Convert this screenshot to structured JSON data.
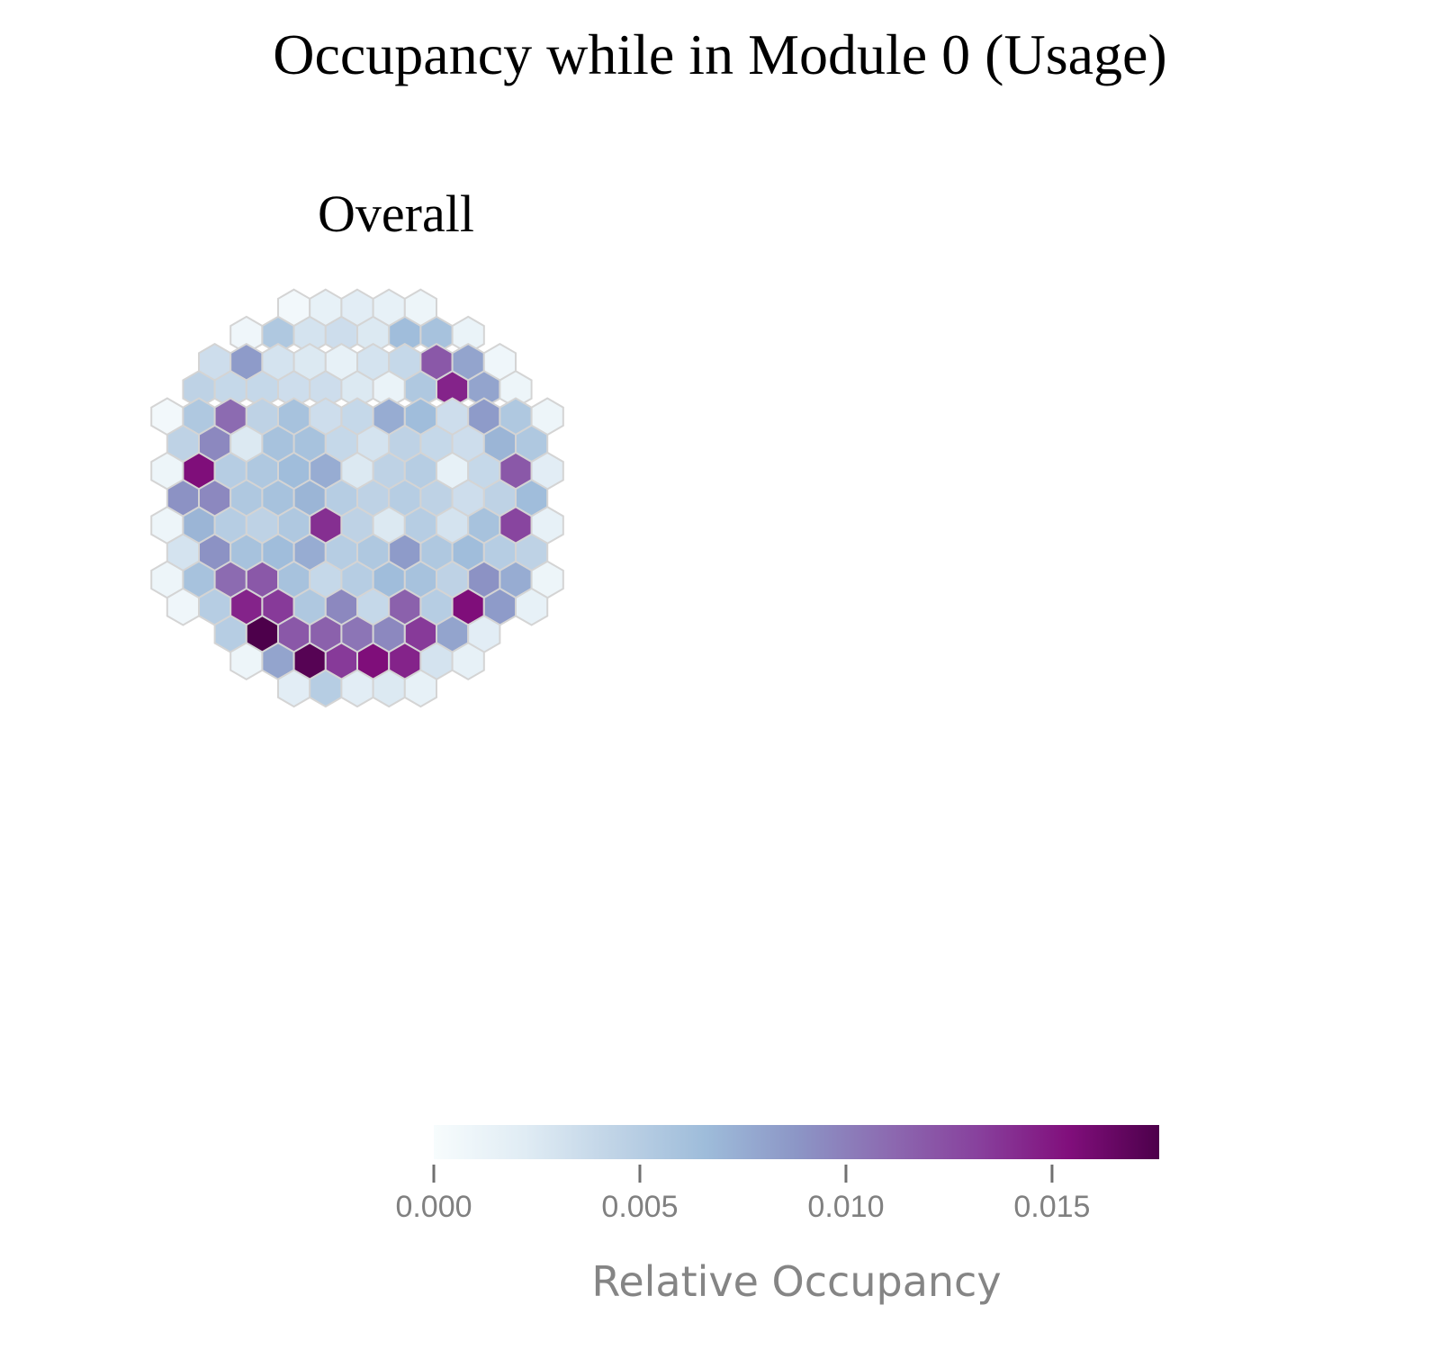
{
  "title": "Occupancy while in Module 0 (Usage)",
  "subplot_title": "Overall",
  "chart_data": {
    "type": "heatmap",
    "subtype": "hexbin",
    "title": "Occupancy while in Module 0 (Usage)",
    "subtitle": "Overall",
    "colorscale": [
      "#f7fcfd",
      "#e0ecf4",
      "#bfd3e6",
      "#9ebcda",
      "#8c96c6",
      "#8c6bb1",
      "#88419d",
      "#810f7c",
      "#4d004b"
    ],
    "colorbar": {
      "title": "Relative Occupancy",
      "range": [
        0,
        0.0176
      ],
      "ticks": [
        0,
        0.005,
        0.01,
        0.015
      ],
      "tick_labels": [
        "0.000",
        "0.005",
        "0.010",
        "0.015"
      ]
    },
    "grid_rows": [
      [
        0.0005,
        0.0015,
        0.002,
        0.0015,
        0.001
      ],
      [
        0.0008,
        0.0055,
        0.003,
        0.0035,
        0.0025,
        0.0065,
        0.006,
        0.0012
      ],
      [
        0.0035,
        0.0085,
        0.003,
        0.0025,
        0.0015,
        0.003,
        0.004,
        0.012,
        0.008,
        0.0008
      ],
      [
        0.0045,
        0.004,
        0.004,
        0.0035,
        0.0035,
        0.0025,
        0.0012,
        0.0055,
        0.0145,
        0.008,
        0.001
      ],
      [
        0.0005,
        0.0055,
        0.011,
        0.0045,
        0.006,
        0.0035,
        0.004,
        0.0075,
        0.0065,
        0.0035,
        0.0085,
        0.0055,
        0.001
      ],
      [
        0.0045,
        0.0095,
        0.0025,
        0.006,
        0.006,
        0.004,
        0.003,
        0.0045,
        0.004,
        0.0035,
        0.007,
        0.0055
      ],
      [
        0.001,
        0.0155,
        0.005,
        0.0055,
        0.0065,
        0.0075,
        0.0025,
        0.0045,
        0.005,
        0.0015,
        0.004,
        0.012,
        0.002
      ],
      [
        0.009,
        0.0095,
        0.0055,
        0.006,
        0.007,
        0.005,
        0.0045,
        0.005,
        0.0045,
        0.0035,
        0.0045,
        0.0065
      ],
      [
        0.001,
        0.007,
        0.005,
        0.0045,
        0.0055,
        0.014,
        0.0045,
        0.0025,
        0.005,
        0.003,
        0.006,
        0.013,
        0.0015
      ],
      [
        0.003,
        0.009,
        0.006,
        0.0065,
        0.0075,
        0.005,
        0.0055,
        0.0085,
        0.0055,
        0.0065,
        0.005,
        0.0045
      ],
      [
        0.001,
        0.006,
        0.011,
        0.012,
        0.006,
        0.004,
        0.005,
        0.0065,
        0.006,
        0.0045,
        0.009,
        0.0075,
        0.001
      ],
      [
        0.0008,
        0.005,
        0.0145,
        0.0135,
        0.0055,
        0.0095,
        0.004,
        0.0115,
        0.005,
        0.0155,
        0.0085,
        0.0015
      ],
      [
        0.005,
        0.0176,
        0.012,
        0.0115,
        0.0105,
        0.0095,
        0.0135,
        0.008,
        0.002
      ],
      [
        0.001,
        0.008,
        0.0172,
        0.0135,
        0.0155,
        0.0145,
        0.003,
        0.0015
      ],
      [
        0.002,
        0.005,
        0.002,
        0.0025,
        0.0015
      ]
    ]
  }
}
